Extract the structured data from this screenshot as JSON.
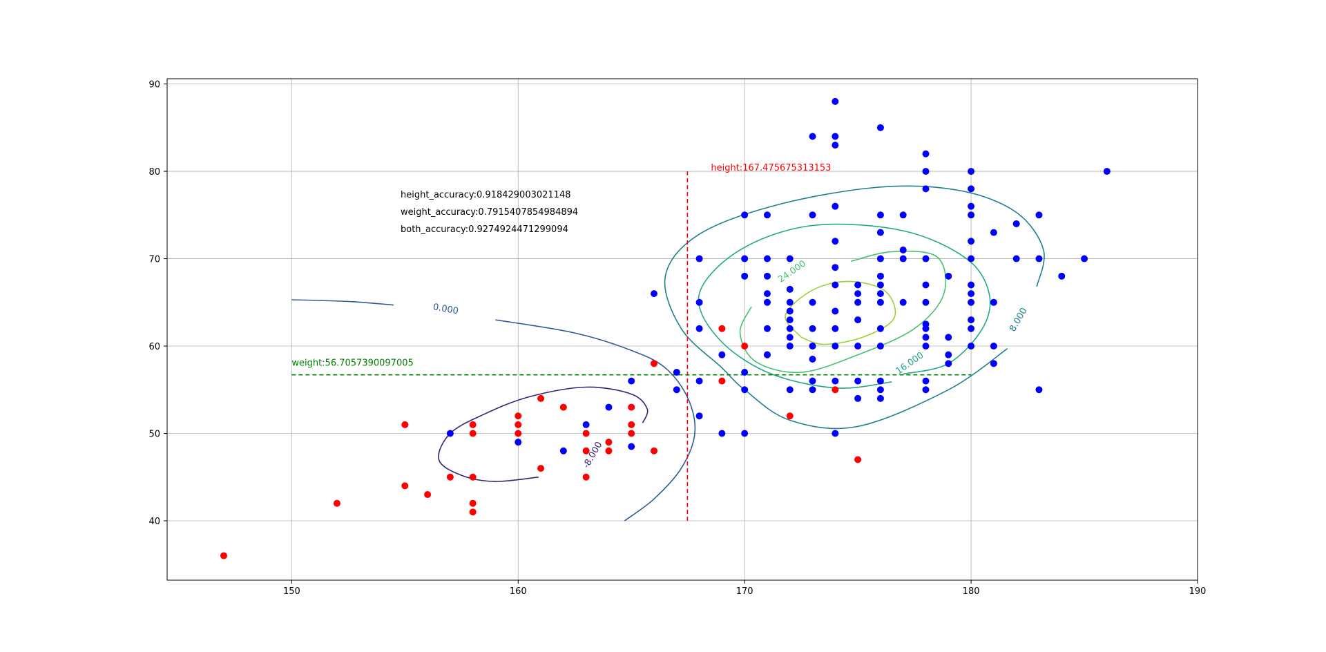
{
  "chart_data": {
    "type": "scatter",
    "xlim": [
      144.5,
      190
    ],
    "ylim": [
      33.2,
      90.6
    ],
    "x_ticks": [
      150,
      160,
      170,
      180,
      190
    ],
    "y_ticks": [
      40,
      50,
      60,
      70,
      80,
      90
    ],
    "grid": true,
    "colors": {
      "class_a": "#ff0000",
      "class_b": "#0000ff",
      "height_line": "#ff0000",
      "weight_line": "#008000"
    },
    "series": [
      {
        "color": "#ff0000",
        "points": [
          [
            147,
            36
          ],
          [
            152,
            42
          ],
          [
            155,
            51
          ],
          [
            155,
            44
          ],
          [
            156,
            43
          ],
          [
            157,
            45
          ],
          [
            158,
            51
          ],
          [
            158,
            50
          ],
          [
            158,
            45
          ],
          [
            158,
            42
          ],
          [
            158,
            41
          ],
          [
            160,
            52
          ],
          [
            160,
            51
          ],
          [
            160,
            50
          ],
          [
            161,
            54
          ],
          [
            161,
            46
          ],
          [
            162,
            53
          ],
          [
            163,
            50
          ],
          [
            163,
            48
          ],
          [
            163,
            45
          ],
          [
            164,
            49
          ],
          [
            164,
            48
          ],
          [
            165,
            53
          ],
          [
            165,
            51
          ],
          [
            165,
            50
          ],
          [
            166,
            48
          ],
          [
            166,
            58
          ],
          [
            169,
            62
          ],
          [
            169,
            56
          ],
          [
            170,
            60
          ],
          [
            171,
            59
          ],
          [
            172,
            52
          ],
          [
            174,
            55
          ],
          [
            175,
            47
          ]
        ]
      },
      {
        "color": "#0000ff",
        "points": [
          [
            157,
            50
          ],
          [
            160,
            49
          ],
          [
            162,
            48
          ],
          [
            163,
            51
          ],
          [
            164,
            53
          ],
          [
            165,
            56
          ],
          [
            165,
            48.5
          ],
          [
            166,
            66
          ],
          [
            167,
            57
          ],
          [
            167,
            55
          ],
          [
            168,
            70
          ],
          [
            168,
            65
          ],
          [
            168,
            62
          ],
          [
            168,
            56
          ],
          [
            168,
            52
          ],
          [
            169,
            59
          ],
          [
            169,
            50
          ],
          [
            170,
            75
          ],
          [
            170,
            70
          ],
          [
            170,
            68
          ],
          [
            170,
            57
          ],
          [
            170,
            55
          ],
          [
            170,
            50
          ],
          [
            171,
            75
          ],
          [
            171,
            70
          ],
          [
            171,
            68
          ],
          [
            171,
            66
          ],
          [
            171,
            65
          ],
          [
            171,
            62
          ],
          [
            171,
            59
          ],
          [
            172,
            70
          ],
          [
            172,
            66.5
          ],
          [
            172,
            65
          ],
          [
            172,
            64
          ],
          [
            172,
            63
          ],
          [
            172,
            62
          ],
          [
            172,
            61
          ],
          [
            172,
            60
          ],
          [
            172,
            55
          ],
          [
            173,
            84
          ],
          [
            173,
            75
          ],
          [
            173,
            65
          ],
          [
            173,
            62
          ],
          [
            173,
            60
          ],
          [
            173,
            58.5
          ],
          [
            173,
            56
          ],
          [
            173,
            55
          ],
          [
            174,
            88
          ],
          [
            174,
            84
          ],
          [
            174,
            83
          ],
          [
            174,
            76
          ],
          [
            174,
            72
          ],
          [
            174,
            69
          ],
          [
            174,
            67
          ],
          [
            174,
            64
          ],
          [
            174,
            62
          ],
          [
            174,
            60
          ],
          [
            174,
            56
          ],
          [
            174,
            50
          ],
          [
            175,
            67
          ],
          [
            175,
            66
          ],
          [
            175,
            65
          ],
          [
            175,
            63
          ],
          [
            175,
            60
          ],
          [
            175,
            56
          ],
          [
            175,
            54
          ],
          [
            176,
            85
          ],
          [
            176,
            75
          ],
          [
            176,
            73
          ],
          [
            176,
            70
          ],
          [
            176,
            68
          ],
          [
            176,
            67
          ],
          [
            176,
            66
          ],
          [
            176,
            65
          ],
          [
            176,
            62
          ],
          [
            176,
            60
          ],
          [
            176,
            56
          ],
          [
            176,
            55
          ],
          [
            176,
            54
          ],
          [
            177,
            75
          ],
          [
            177,
            71
          ],
          [
            177,
            70
          ],
          [
            177,
            65
          ],
          [
            178,
            82
          ],
          [
            178,
            80
          ],
          [
            178,
            78
          ],
          [
            178,
            70
          ],
          [
            178,
            67
          ],
          [
            178,
            65
          ],
          [
            178,
            62.5
          ],
          [
            178,
            62
          ],
          [
            178,
            61
          ],
          [
            178,
            60
          ],
          [
            178,
            56
          ],
          [
            178,
            55
          ],
          [
            179,
            68
          ],
          [
            179,
            61
          ],
          [
            179,
            59
          ],
          [
            179,
            58
          ],
          [
            180,
            80
          ],
          [
            180,
            78
          ],
          [
            180,
            76
          ],
          [
            180,
            75
          ],
          [
            180,
            72
          ],
          [
            180,
            70
          ],
          [
            180,
            67
          ],
          [
            180,
            66
          ],
          [
            180,
            65
          ],
          [
            180,
            63
          ],
          [
            180,
            62
          ],
          [
            180,
            60
          ],
          [
            181,
            73
          ],
          [
            181,
            65
          ],
          [
            181,
            60
          ],
          [
            181,
            58
          ],
          [
            182,
            74
          ],
          [
            182,
            70
          ],
          [
            183,
            75
          ],
          [
            183,
            70
          ],
          [
            183,
            55
          ],
          [
            184,
            68
          ],
          [
            185,
            70
          ],
          [
            186,
            80
          ]
        ]
      }
    ],
    "threshold_lines": {
      "height": {
        "x": 167.475675313153,
        "y_range": [
          40,
          80
        ],
        "label": "height:167.475675313153"
      },
      "weight": {
        "y": 56.7057390097005,
        "x_range": [
          150,
          180
        ],
        "label": "weight:56.7057390097005"
      }
    },
    "contours": [
      {
        "level_label": "-8.000",
        "color": "#3b1f75",
        "paths": [
          [
            [
              160.9,
              45
            ],
            [
              159,
              44.5
            ],
            [
              157.5,
              45.2
            ],
            [
              156.5,
              47
            ],
            [
              157,
              50
            ],
            [
              158.5,
              52.2
            ],
            [
              160.5,
              54.2
            ],
            [
              163,
              55.3
            ],
            [
              165,
              54.5
            ],
            [
              165.7,
              52.8
            ],
            [
              165.5,
              51.2
            ]
          ]
        ],
        "label_at": [
          163.3,
          47.5
        ],
        "label_angle": -60
      },
      {
        "level_label": "0.000",
        "color": "#2f5a96",
        "paths": [
          [
            [
              150,
              65.3
            ],
            [
              152.5,
              65.1
            ],
            [
              154.5,
              64.7
            ]
          ],
          [
            [
              159,
              63
            ],
            [
              162.5,
              61.5
            ],
            [
              165,
              59.5
            ],
            [
              166.5,
              57.5
            ],
            [
              167.5,
              54
            ],
            [
              167.8,
              50
            ],
            [
              167.2,
              46
            ],
            [
              166,
              42.5
            ],
            [
              164.7,
              40
            ]
          ]
        ],
        "label_at": [
          156.8,
          64.2
        ],
        "label_angle": 10
      },
      {
        "level_label": "8.000",
        "color": "#1f7f8e",
        "paths": [
          [
            [
              182.9,
              66.8
            ],
            [
              183.2,
              71
            ],
            [
              182,
              75.3
            ],
            [
              179.5,
              77.8
            ],
            [
              176,
              78.2
            ],
            [
              171.5,
              76.2
            ],
            [
              168,
              72.8
            ],
            [
              166.5,
              68
            ],
            [
              167.2,
              62
            ],
            [
              169,
              57.5
            ],
            [
              170,
              55
            ],
            [
              172,
              51.5
            ],
            [
              175,
              50.8
            ],
            [
              179,
              55
            ],
            [
              181.6,
              59.7
            ]
          ]
        ],
        "label_at": [
          182.1,
          63
        ],
        "label_angle": -60
      },
      {
        "level_label": "16.000",
        "color": "#22a88a",
        "paths": [
          [
            [
              177,
              56.8
            ],
            [
              179,
              58
            ],
            [
              180.5,
              62
            ],
            [
              180.8,
              66
            ],
            [
              179.8,
              70
            ],
            [
              177,
              73.2
            ],
            [
              173,
              73.8
            ],
            [
              169.8,
              71
            ],
            [
              168,
              66
            ],
            [
              168.8,
              61
            ],
            [
              171,
              57
            ],
            [
              174,
              55.2
            ],
            [
              176.5,
              55.9
            ]
          ]
        ],
        "label_at": [
          177.3,
          58
        ],
        "label_angle": -35
      },
      {
        "level_label": "24.000",
        "color": "#47c16e",
        "paths": [
          [
            [
              174.7,
              69.7
            ],
            [
              176.5,
              70.8
            ],
            [
              178.5,
              70.2
            ],
            [
              178.8,
              66
            ],
            [
              177.5,
              62
            ],
            [
              175,
              59
            ],
            [
              172.5,
              57
            ],
            [
              170.5,
              58.2
            ],
            [
              169.8,
              61.5
            ],
            [
              170.3,
              64.5
            ]
          ]
        ],
        "label_at": [
          172.1,
          68.5
        ],
        "label_angle": -35
      },
      {
        "level_label": "",
        "color": "#9cd134",
        "paths": [
          [
            [
              172.5,
              61
            ],
            [
              173.5,
              60.2
            ],
            [
              175.2,
              61
            ],
            [
              176.6,
              63.2
            ],
            [
              176.2,
              66.3
            ],
            [
              174.6,
              67.4
            ],
            [
              173,
              66.4
            ],
            [
              171.8,
              63.5
            ],
            [
              172.5,
              61
            ]
          ]
        ]
      }
    ]
  },
  "annotations": {
    "height_accuracy": "height_accuracy:0.918429003021148",
    "weight_accuracy": "weight_accuracy:0.7915407854984894",
    "both_accuracy": "both_accuracy:0.9274924471299094"
  }
}
